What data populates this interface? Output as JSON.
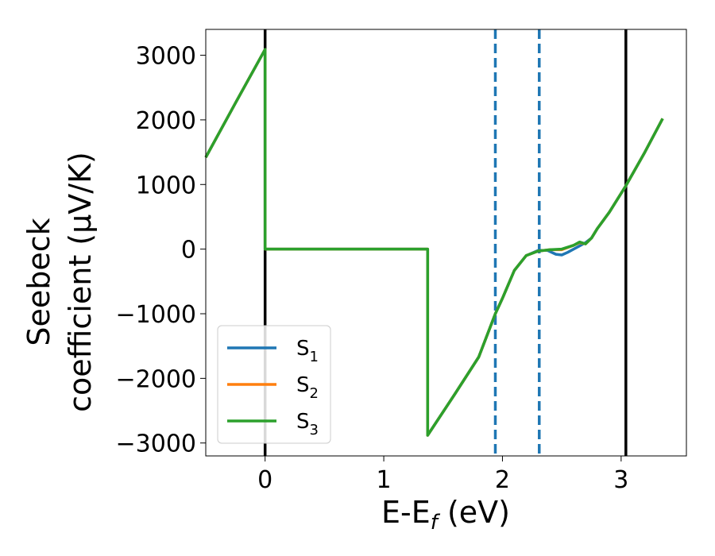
{
  "chart_data": {
    "type": "line",
    "xlabel_main": "E-E",
    "xlabel_sub": "f",
    "xlabel_unit": " (eV)",
    "ylabel_line1": "Seebeck",
    "ylabel_line2": "coefficient  (μV/K)",
    "xlim": [
      -0.5,
      3.55
    ],
    "ylim": [
      -3200,
      3400
    ],
    "xticks": [
      0,
      1,
      2,
      3
    ],
    "xtick_labels": [
      "0",
      "1",
      "2",
      "3"
    ],
    "yticks": [
      3000,
      2000,
      1000,
      0,
      -1000,
      -2000,
      -3000
    ],
    "ytick_labels": [
      "3000",
      "2000",
      "1000",
      "0",
      "−1000",
      "−2000",
      "−3000"
    ],
    "vlines_solid": [
      0.0,
      3.04
    ],
    "vlines_dashed": [
      1.94,
      2.31
    ],
    "legend_position": "lower-left",
    "series": [
      {
        "name": "S",
        "subscript": "1",
        "color": "#1f77b4",
        "points": [
          [
            -0.5,
            1420
          ],
          [
            -0.25,
            2260
          ],
          [
            0.0,
            3090
          ],
          [
            0.0,
            0
          ],
          [
            1.37,
            0
          ],
          [
            1.37,
            -2880
          ],
          [
            1.6,
            -2240
          ],
          [
            1.8,
            -1670
          ],
          [
            1.94,
            -1000
          ],
          [
            2.0,
            -760
          ],
          [
            2.1,
            -330
          ],
          [
            2.2,
            -100
          ],
          [
            2.3,
            -20
          ],
          [
            2.38,
            -20
          ],
          [
            2.45,
            -80
          ],
          [
            2.5,
            -90
          ],
          [
            2.55,
            -50
          ],
          [
            2.6,
            0
          ],
          [
            2.65,
            50
          ],
          [
            2.7,
            100
          ],
          [
            2.75,
            170
          ],
          [
            2.8,
            320
          ],
          [
            2.9,
            570
          ],
          [
            3.04,
            980
          ],
          [
            3.2,
            1500
          ],
          [
            3.35,
            2020
          ]
        ]
      },
      {
        "name": "S",
        "subscript": "2",
        "color": "#ff7f0e",
        "points": [
          [
            -0.5,
            1420
          ],
          [
            -0.25,
            2260
          ],
          [
            0.0,
            3090
          ],
          [
            0.0,
            0
          ],
          [
            1.37,
            0
          ],
          [
            1.37,
            -2880
          ],
          [
            1.6,
            -2240
          ],
          [
            1.8,
            -1670
          ],
          [
            1.94,
            -1000
          ],
          [
            2.0,
            -760
          ],
          [
            2.1,
            -330
          ],
          [
            2.2,
            -100
          ],
          [
            2.3,
            -30
          ],
          [
            2.4,
            -10
          ],
          [
            2.5,
            -10
          ],
          [
            2.6,
            60
          ],
          [
            2.65,
            100
          ],
          [
            2.7,
            80
          ],
          [
            2.75,
            170
          ],
          [
            2.8,
            320
          ],
          [
            2.9,
            570
          ],
          [
            3.04,
            980
          ],
          [
            3.2,
            1500
          ],
          [
            3.35,
            2020
          ]
        ]
      },
      {
        "name": "S",
        "subscript": "3",
        "color": "#2ca02c",
        "points": [
          [
            -0.5,
            1420
          ],
          [
            -0.25,
            2260
          ],
          [
            0.0,
            3090
          ],
          [
            0.0,
            0
          ],
          [
            1.37,
            0
          ],
          [
            1.37,
            -2880
          ],
          [
            1.6,
            -2240
          ],
          [
            1.8,
            -1670
          ],
          [
            1.94,
            -1000
          ],
          [
            2.0,
            -760
          ],
          [
            2.1,
            -330
          ],
          [
            2.2,
            -100
          ],
          [
            2.3,
            -30
          ],
          [
            2.4,
            -10
          ],
          [
            2.5,
            0
          ],
          [
            2.6,
            60
          ],
          [
            2.65,
            110
          ],
          [
            2.7,
            80
          ],
          [
            2.75,
            170
          ],
          [
            2.8,
            320
          ],
          [
            2.9,
            570
          ],
          [
            3.04,
            980
          ],
          [
            3.2,
            1500
          ],
          [
            3.35,
            2020
          ]
        ]
      }
    ]
  }
}
